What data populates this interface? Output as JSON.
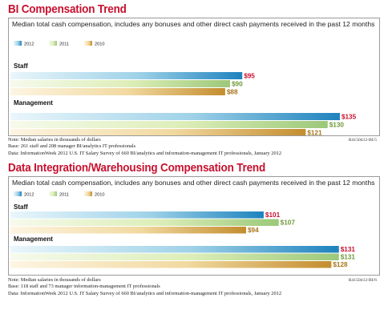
{
  "chart_data": [
    {
      "type": "bar",
      "orientation": "horizontal",
      "title": "BI Compensation Trend",
      "subtitle": "Median total cash compensation, includes any bonuses and other direct cash payments received in the past 12 months",
      "categories": [
        "Staff",
        "Management"
      ],
      "series": [
        {
          "name": "2012",
          "values": [
            95,
            135
          ],
          "labels": [
            "$95",
            "$135"
          ]
        },
        {
          "name": "2011",
          "values": [
            90,
            130
          ],
          "labels": [
            "$90",
            "$130"
          ]
        },
        {
          "name": "2010",
          "values": [
            88,
            121
          ],
          "labels": [
            "$88",
            "$121"
          ]
        }
      ],
      "legend_position": "top-left",
      "grid": false,
      "notes": [
        "Note: Median salaries in thousands of dollars",
        "Base: 261 staff and 208 manager BI/analytics IT professionals",
        "Data: InformationWeek 2012 U.S. IT Salary Survey of 660 BI/analytics and information-management IT professionals, January 2012"
      ],
      "source_id": "R4150412-BI/5"
    },
    {
      "type": "bar",
      "orientation": "horizontal",
      "title": "Data Integration/Warehousing Compensation Trend",
      "subtitle": "Median total cash compensation, includes any bonuses and other direct cash payments received in the past 12 months",
      "categories": [
        "Staff",
        "Management"
      ],
      "series": [
        {
          "name": "2012",
          "values": [
            101,
            131
          ],
          "labels": [
            "$101",
            "$131"
          ]
        },
        {
          "name": "2011",
          "values": [
            107,
            131
          ],
          "labels": [
            "$107",
            "$131"
          ]
        },
        {
          "name": "2010",
          "values": [
            94,
            128
          ],
          "labels": [
            "$94",
            "$128"
          ]
        }
      ],
      "legend_position": "top-left",
      "grid": false,
      "notes": [
        "Note: Median salaries in thousands of dollars",
        "Base: 118 staff and 73 manager information-management IT professionals",
        "Data: InformationWeek 2012 U.S. IT Salary Survey of 660 BI/analytics and information-management IT professionals, January 2012"
      ],
      "source_id": "R4150412-BI/6"
    }
  ],
  "colors": {
    "title": "#c8102e",
    "label_2012": "#c8102e",
    "label_2011": "#6f9a3a",
    "label_2010": "#a8741a"
  }
}
